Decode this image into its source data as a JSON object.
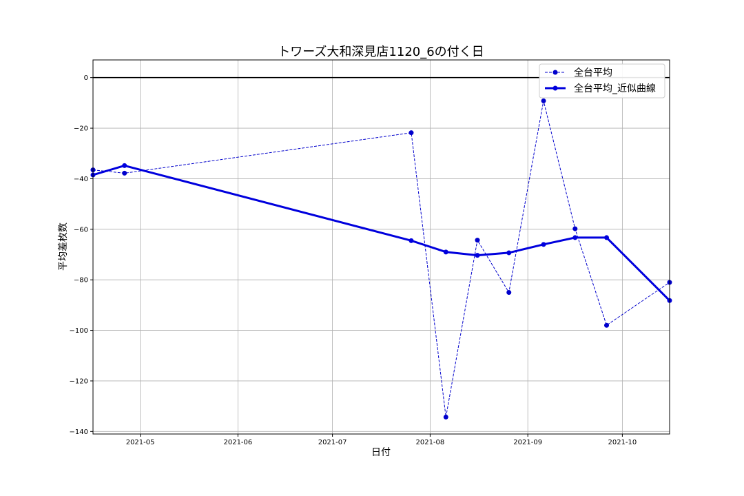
{
  "chart_data": {
    "type": "line",
    "title": "トワーズ大和深見店1120_6の付く日",
    "xlabel": "日付",
    "ylabel": "平均差枚数",
    "xlim": [
      "2021-04-16",
      "2021-10-16"
    ],
    "ylim": [
      -141,
      7
    ],
    "x_ticks": [
      "2021-05",
      "2021-06",
      "2021-07",
      "2021-08",
      "2021-09",
      "2021-10"
    ],
    "x_tick_dates": [
      "2021-05-01",
      "2021-06-01",
      "2021-07-01",
      "2021-08-01",
      "2021-09-01",
      "2021-10-01"
    ],
    "y_ticks": [
      0,
      -20,
      -40,
      -60,
      -80,
      -100,
      -120,
      -140
    ],
    "grid": true,
    "legend_position": "top-right",
    "hline": 0,
    "series": [
      {
        "name": "全台平均",
        "style": "dashed",
        "color": "#0000cc",
        "x": [
          "2021-04-16",
          "2021-04-26",
          "2021-07-26",
          "2021-08-06",
          "2021-08-16",
          "2021-08-26",
          "2021-09-06",
          "2021-09-16",
          "2021-09-26",
          "2021-10-16"
        ],
        "values": [
          -36.5,
          -37.8,
          -21.8,
          -134.3,
          -64.3,
          -85.0,
          -9.2,
          -59.8,
          -98.0,
          -81.0
        ]
      },
      {
        "name": "全台平均_近似曲線",
        "style": "solid",
        "color": "#0000dd",
        "x": [
          "2021-04-16",
          "2021-04-26",
          "2021-07-26",
          "2021-08-06",
          "2021-08-16",
          "2021-08-26",
          "2021-09-06",
          "2021-09-16",
          "2021-09-26",
          "2021-10-16"
        ],
        "values": [
          -38.5,
          -34.8,
          -64.5,
          -69.0,
          -70.3,
          -69.3,
          -66.0,
          -63.3,
          -63.3,
          -88.2
        ]
      }
    ]
  }
}
